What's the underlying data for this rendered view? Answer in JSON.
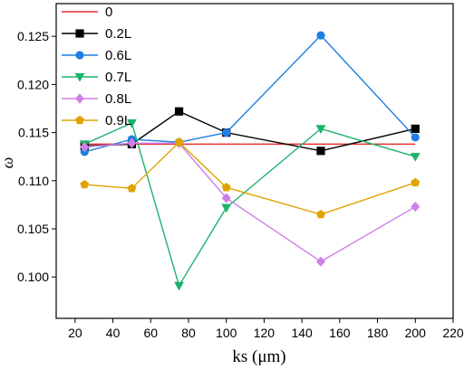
{
  "chart_data": {
    "type": "line",
    "xlabel": "ks (μm)",
    "ylabel": "ω",
    "xlim": [
      10,
      220
    ],
    "ylim": [
      0.0957,
      0.1284
    ],
    "xticks": [
      20,
      40,
      60,
      80,
      100,
      120,
      140,
      160,
      180,
      200,
      220
    ],
    "yticks": [
      0.1,
      0.105,
      0.11,
      0.115,
      0.12,
      0.125
    ],
    "ytick_labels": [
      "0.100",
      "0.105",
      "0.110",
      "0.115",
      "0.120",
      "0.125"
    ],
    "legend_position": "top-left",
    "grid": false,
    "x": [
      25,
      50,
      75,
      100,
      150,
      200
    ],
    "series": [
      {
        "name": "0",
        "color": "#e8312f",
        "marker": "none",
        "values": [
          0.1138,
          0.1138,
          0.1138,
          0.1138,
          0.1138,
          0.1138
        ]
      },
      {
        "name": "0.2L",
        "color": "#000000",
        "marker": "square",
        "values": [
          0.1136,
          0.1138,
          0.1172,
          0.115,
          0.1131,
          0.1154
        ]
      },
      {
        "name": "0.6L",
        "color": "#1f7fe0",
        "marker": "circle",
        "values": [
          0.113,
          0.1143,
          0.114,
          0.115,
          0.1251,
          0.1145
        ]
      },
      {
        "name": "0.7L",
        "color": "#1ab36b",
        "marker": "triangle-down",
        "values": [
          0.1138,
          0.116,
          0.0991,
          0.1072,
          0.1154,
          0.1125
        ]
      },
      {
        "name": "0.8L",
        "color": "#cf7fe8",
        "marker": "diamond",
        "values": [
          0.1135,
          0.1139,
          0.1139,
          0.1082,
          0.1016,
          0.1073
        ]
      },
      {
        "name": "0.9L",
        "color": "#e0a300",
        "marker": "pentagon",
        "values": [
          0.1096,
          0.1092,
          0.114,
          0.1093,
          0.1065,
          0.1098
        ]
      }
    ]
  }
}
